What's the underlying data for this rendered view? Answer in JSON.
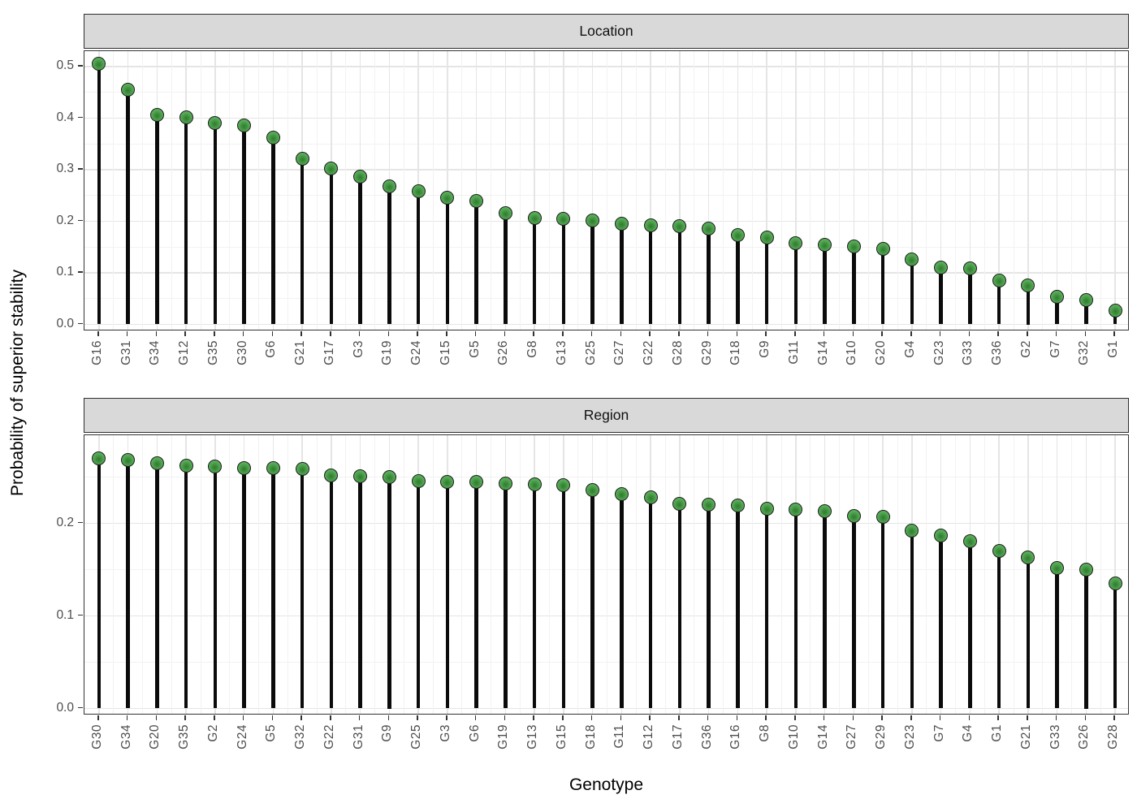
{
  "figure": {
    "y_axis_title": "Probability of superior stability",
    "x_axis_title": "Genotype"
  },
  "colors": {
    "point_fill": "#54a854",
    "point_center": "#2e7c2e",
    "point_border": "#1c1c1c",
    "stem": "#0b0b0b",
    "strip_background": "#D9D9D9",
    "panel_border": "#333333",
    "grid_major": "#e5e5e5",
    "grid_minor": "#f2f2f2",
    "tick_label": "#4d4d4d"
  },
  "chart_data": [
    {
      "type": "lollipop",
      "facet": "Location",
      "xlabel": "Genotype",
      "ylabel": "Probability of superior stability",
      "grid": true,
      "legend": "none",
      "ylim": [
        0,
        0.53
      ],
      "ytick_labels": [
        "0.0",
        "0.1",
        "0.2",
        "0.3",
        "0.4",
        "0.5"
      ],
      "ytick_values": [
        0.0,
        0.1,
        0.2,
        0.3,
        0.4,
        0.5
      ],
      "categories": [
        "G16",
        "G31",
        "G34",
        "G12",
        "G35",
        "G30",
        "G6",
        "G21",
        "G17",
        "G3",
        "G19",
        "G24",
        "G15",
        "G5",
        "G26",
        "G8",
        "G13",
        "G25",
        "G27",
        "G22",
        "G28",
        "G29",
        "G18",
        "G9",
        "G11",
        "G14",
        "G10",
        "G20",
        "G4",
        "G23",
        "G33",
        "G36",
        "G2",
        "G7",
        "G32",
        "G1"
      ],
      "values": [
        0.505,
        0.455,
        0.407,
        0.402,
        0.39,
        0.386,
        0.362,
        0.322,
        0.303,
        0.287,
        0.268,
        0.258,
        0.245,
        0.24,
        0.216,
        0.207,
        0.204,
        0.202,
        0.195,
        0.192,
        0.19,
        0.186,
        0.173,
        0.168,
        0.157,
        0.154,
        0.151,
        0.147,
        0.126,
        0.111,
        0.108,
        0.085,
        0.075,
        0.054,
        0.048,
        0.027
      ]
    },
    {
      "type": "lollipop",
      "facet": "Region",
      "xlabel": "Genotype",
      "ylabel": "Probability of superior stability",
      "grid": true,
      "legend": "none",
      "ylim": [
        0,
        0.295
      ],
      "ytick_labels": [
        "0.0",
        "0.1",
        "0.2"
      ],
      "ytick_values": [
        0.0,
        0.1,
        0.2
      ],
      "categories": [
        "G30",
        "G34",
        "G20",
        "G35",
        "G2",
        "G24",
        "G5",
        "G32",
        "G22",
        "G31",
        "G9",
        "G25",
        "G3",
        "G6",
        "G19",
        "G13",
        "G15",
        "G18",
        "G11",
        "G12",
        "G17",
        "G36",
        "G16",
        "G8",
        "G10",
        "G14",
        "G27",
        "G29",
        "G23",
        "G7",
        "G4",
        "G1",
        "G21",
        "G33",
        "G26",
        "G28"
      ],
      "values": [
        0.27,
        0.268,
        0.265,
        0.262,
        0.261,
        0.26,
        0.26,
        0.259,
        0.252,
        0.251,
        0.25,
        0.246,
        0.245,
        0.245,
        0.243,
        0.242,
        0.241,
        0.236,
        0.232,
        0.228,
        0.221,
        0.22,
        0.219,
        0.216,
        0.215,
        0.213,
        0.208,
        0.207,
        0.192,
        0.187,
        0.181,
        0.17,
        0.163,
        0.152,
        0.15,
        0.135
      ]
    }
  ]
}
